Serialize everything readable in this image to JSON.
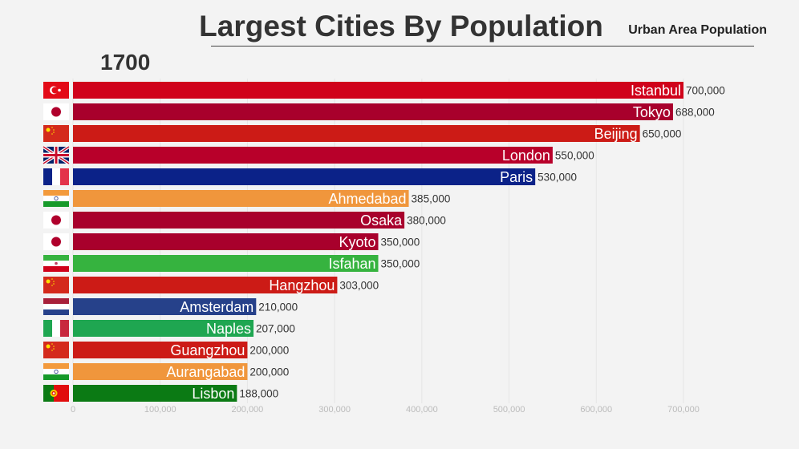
{
  "chart_data": {
    "type": "bar",
    "title": "Largest Cities By Population",
    "subtitle": "Urban Area Population",
    "year": "1700",
    "xlim": [
      0,
      700000
    ],
    "xticks": [
      0,
      100000,
      200000,
      300000,
      400000,
      500000,
      600000,
      700000
    ],
    "xtick_labels": [
      "0",
      "100,000",
      "200,000",
      "300,000",
      "400,000",
      "500,000",
      "600,000",
      "700,000"
    ],
    "grid": true,
    "categories": [
      "Istanbul",
      "Tokyo",
      "Beijing",
      "London",
      "Paris",
      "Ahmedabad",
      "Osaka",
      "Kyoto",
      "Isfahan",
      "Hangzhou",
      "Amsterdam",
      "Naples",
      "Guangzhou",
      "Aurangabad",
      "Lisbon"
    ],
    "values": [
      700000,
      688000,
      650000,
      550000,
      530000,
      385000,
      380000,
      350000,
      350000,
      303000,
      210000,
      207000,
      200000,
      200000,
      188000
    ],
    "value_labels": [
      "700,000",
      "688,000",
      "650,000",
      "550,000",
      "530,000",
      "385,000",
      "380,000",
      "350,000",
      "350,000",
      "303,000",
      "210,000",
      "207,000",
      "200,000",
      "200,000",
      "188,000"
    ],
    "countries": [
      "turkey",
      "japan",
      "china",
      "uk",
      "france",
      "india",
      "japan",
      "japan",
      "iran",
      "china",
      "netherlands",
      "italy",
      "china",
      "india",
      "portugal"
    ],
    "colors": [
      "#d0021b",
      "#a8002c",
      "#cc1b16",
      "#b8002a",
      "#0b2288",
      "#f0963c",
      "#a8002c",
      "#a8002c",
      "#36b33f",
      "#cc1b16",
      "#26418a",
      "#1fa651",
      "#cc1b16",
      "#f0963c",
      "#0b7a14"
    ]
  }
}
